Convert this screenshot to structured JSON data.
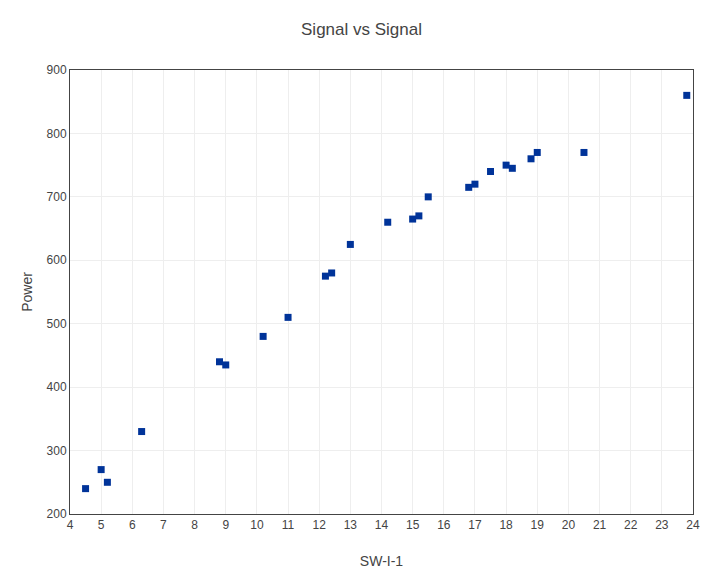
{
  "chart_data": {
    "type": "scatter",
    "title": "Signal vs Signal",
    "x_label": "SW-I-1",
    "y_label": "Power",
    "x": [
      4.5,
      5.0,
      5.2,
      6.3,
      8.8,
      9.0,
      10.2,
      11.0,
      12.2,
      12.4,
      13.0,
      14.2,
      15.0,
      15.2,
      15.5,
      16.8,
      17.0,
      17.5,
      18.0,
      18.2,
      18.8,
      19.0,
      20.5,
      23.8
    ],
    "values": [
      240,
      270,
      250,
      330,
      440,
      435,
      480,
      510,
      575,
      580,
      625,
      660,
      665,
      670,
      700,
      715,
      720,
      740,
      750,
      745,
      760,
      770,
      770,
      860
    ],
    "color": "#003399",
    "marker": "square",
    "xlim": [
      4,
      24
    ],
    "ylim": [
      200,
      900
    ],
    "xticks": [
      4,
      5,
      6,
      7,
      8,
      9,
      10,
      11,
      12,
      13,
      14,
      15,
      16,
      17,
      18,
      19,
      20,
      21,
      22,
      23,
      24
    ],
    "yticks": [
      200,
      300,
      400,
      500,
      600,
      700,
      800,
      900
    ],
    "grid": true
  }
}
